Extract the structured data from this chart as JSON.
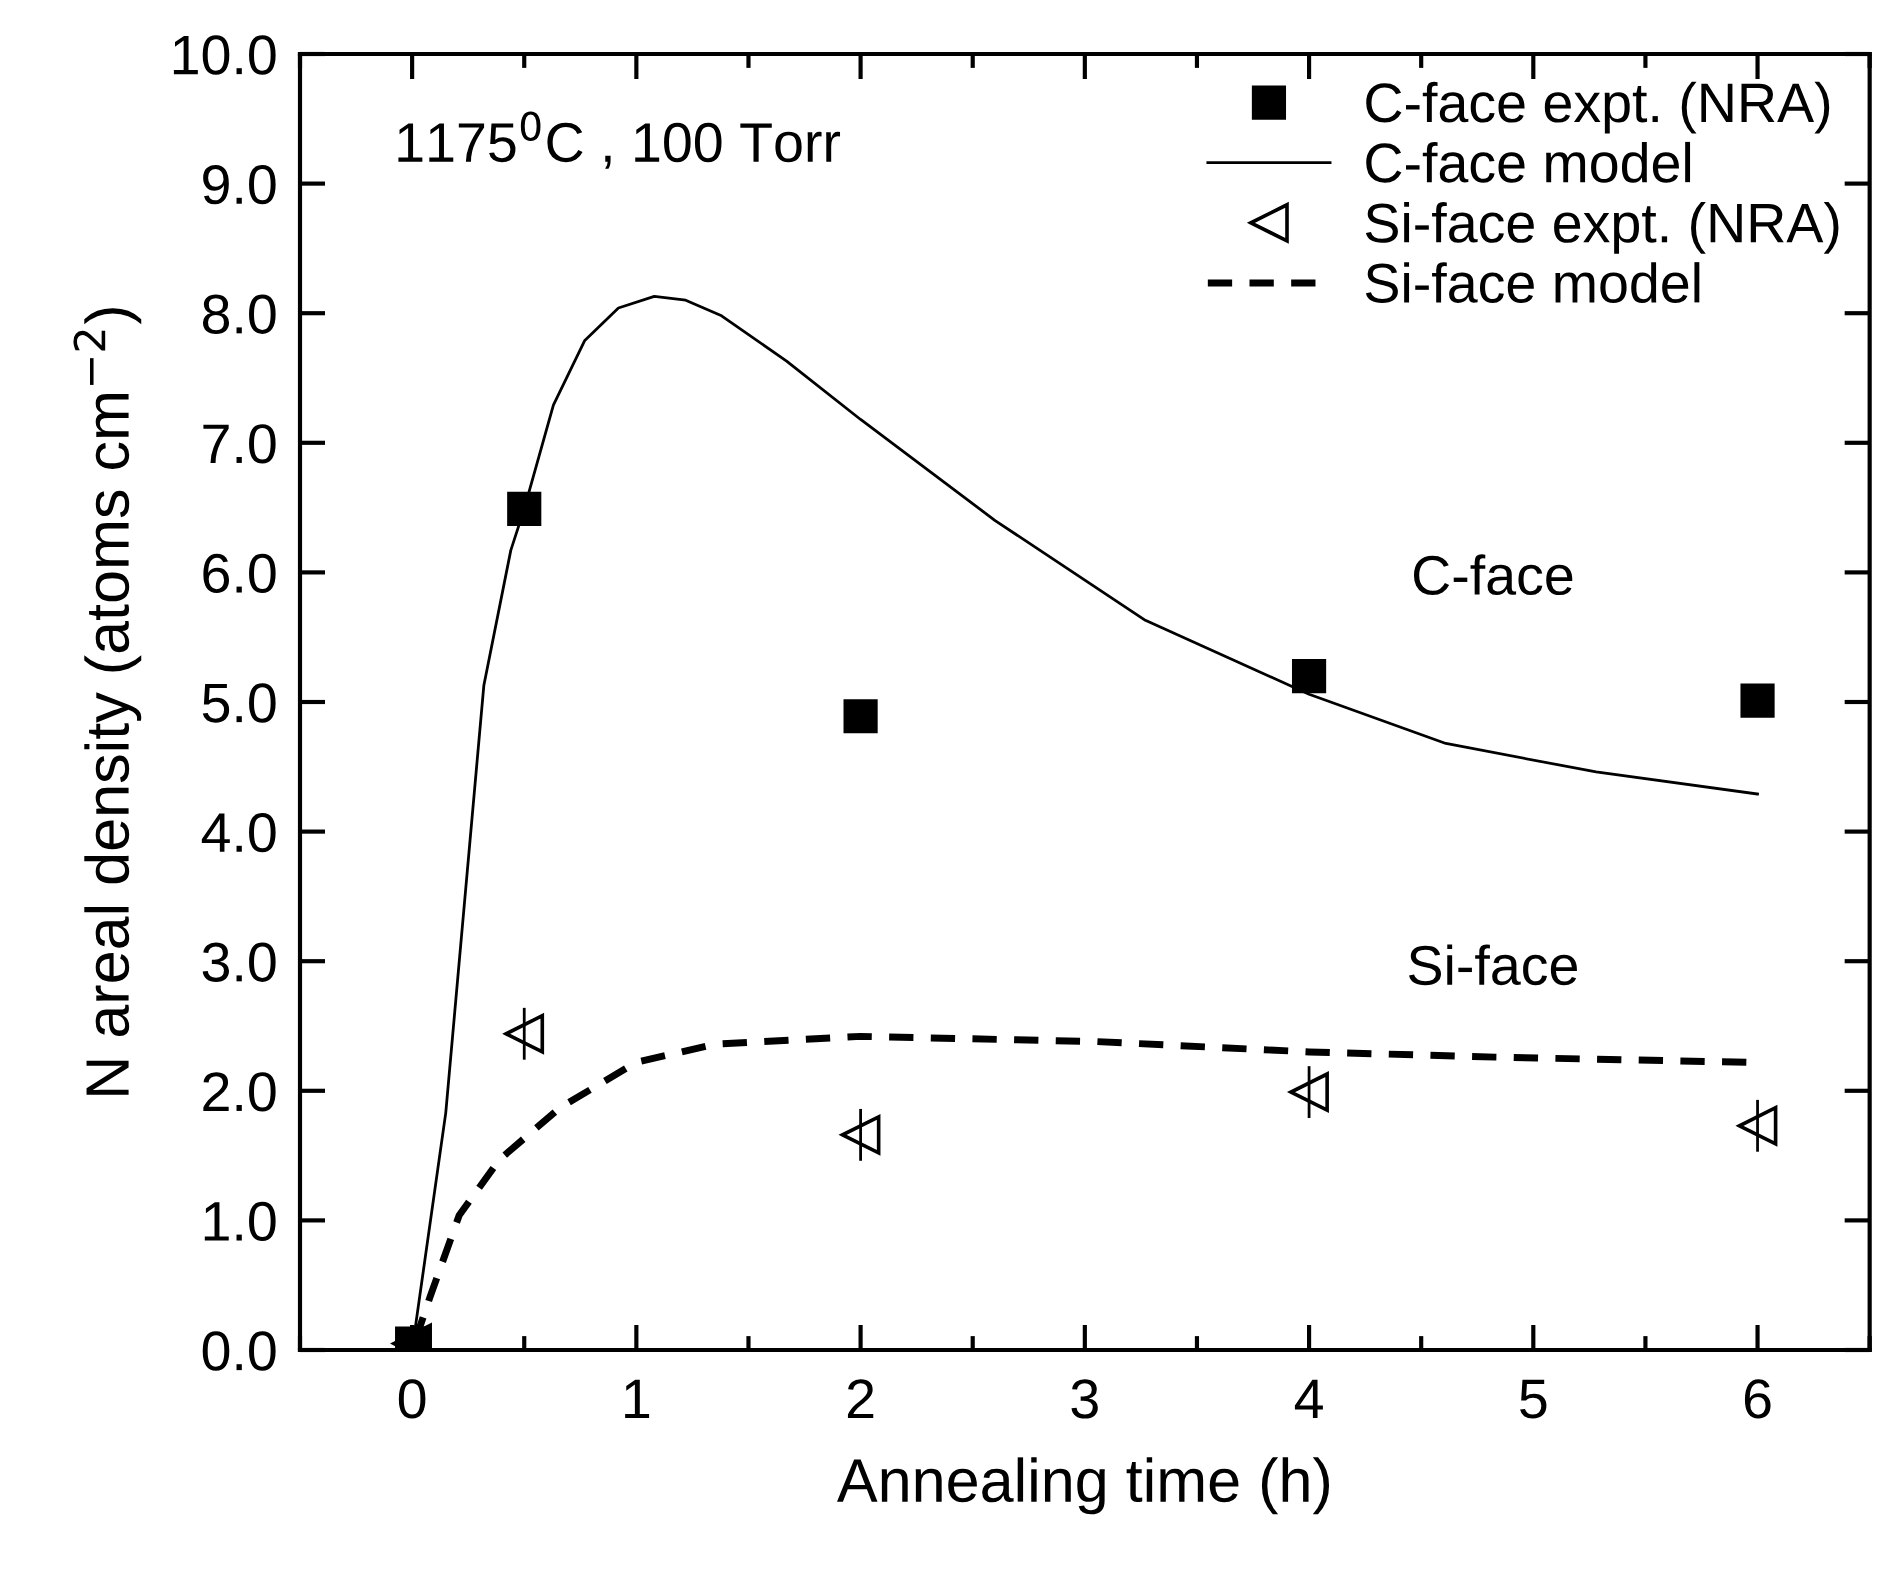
{
  "chart_data": {
    "type": "scatter",
    "xlabel": "Annealing time (h)",
    "ylabel": "N areal density (atoms cm$^{−2}$)",
    "xlim": [
      -0.5,
      6.5
    ],
    "xticks": [
      0,
      1,
      2,
      3,
      4,
      5,
      6
    ],
    "ylim": [
      0,
      10
    ],
    "yticks": [
      {
        "value": 0,
        "label": "0.0"
      },
      {
        "value": 1,
        "label": "1.0"
      },
      {
        "value": 2,
        "label": "2.0"
      },
      {
        "value": 3,
        "label": "3.0"
      },
      {
        "value": 4,
        "label": "4.0"
      },
      {
        "value": 5,
        "label": "5.0"
      },
      {
        "value": 6,
        "label": "6.0"
      },
      {
        "value": 7,
        "label": "7.0"
      },
      {
        "value": 8,
        "label": "8.0"
      },
      {
        "value": 9,
        "label": "9.0"
      },
      {
        "value": 10,
        "label": "10.0"
      }
    ],
    "grid": false,
    "legend": "top right",
    "annotations": [
      "1175$^{0}$C , 100 Torr",
      "C-face",
      "Si-face"
    ],
    "series": [
      {
        "name": "C-face expt. (NRA)",
        "marker": "square",
        "color": "#000000",
        "x": [
          0,
          0.5,
          2,
          4,
          6
        ],
        "values": [
          0.05,
          6.49,
          4.89,
          5.2,
          5.01
        ]
      },
      {
        "name": "C-face model",
        "type": "line",
        "line_style": "solid",
        "marker": "none",
        "color": "#000000",
        "x": [
          0,
          0.15,
          0.32,
          0.44,
          0.5,
          0.63,
          0.77,
          0.92,
          1.08,
          1.22,
          1.38,
          1.67,
          2.0,
          2.6,
          3.27,
          4.0,
          4.61,
          5.28,
          6.0
        ],
        "values": [
          0,
          1.83,
          5.13,
          6.17,
          6.49,
          7.29,
          7.79,
          8.04,
          8.13,
          8.1,
          7.98,
          7.63,
          7.18,
          6.4,
          5.63,
          5.06,
          4.68,
          4.46,
          4.29
        ]
      },
      {
        "name": "Si-face expt. (NRA)",
        "marker": "triangle",
        "color": "#000000",
        "x": [
          0,
          0.5,
          2,
          4,
          6
        ],
        "values": [
          0.05,
          2.44,
          1.66,
          1.99,
          1.73
        ],
        "errors": [
          null,
          0.2,
          0.2,
          0.2,
          0.2
        ]
      },
      {
        "name": "Si-face model",
        "type": "line",
        "line_style": "dashed",
        "marker": "none",
        "color": "#000000",
        "x": [
          0,
          0.08,
          0.21,
          0.39,
          0.66,
          1.0,
          1.35,
          2.0,
          3.05,
          4.0,
          4.83,
          5.95
        ],
        "values": [
          0,
          0.41,
          1.04,
          1.47,
          1.87,
          2.22,
          2.36,
          2.42,
          2.38,
          2.3,
          2.26,
          2.22
        ]
      }
    ]
  }
}
